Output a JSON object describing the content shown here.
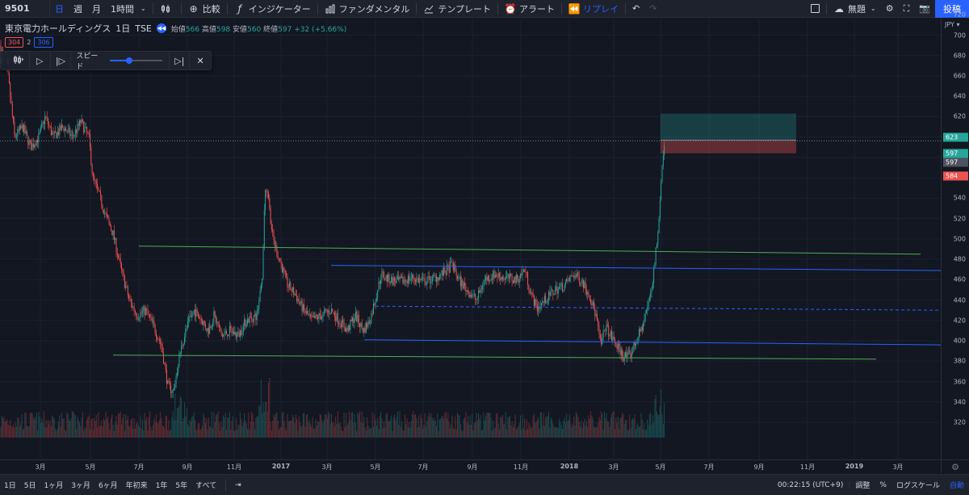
{
  "toolbar": {
    "symbol": "9501",
    "intervals": [
      "日",
      "週",
      "月"
    ],
    "active_interval": "日",
    "hour_interval": "1時間",
    "compare": "比較",
    "indicators": "インジケーター",
    "fundamentals": "ファンダメンタル",
    "templates": "テンプレート",
    "alert": "アラート",
    "replay": "リプレイ",
    "layout_name": "無題",
    "post": "投稿"
  },
  "legend": {
    "name": "東京電力ホールディングス",
    "interval": "1日",
    "exchange": "TSE",
    "open_label": "始値",
    "open": "566",
    "high_label": "高値",
    "high": "598",
    "low_label": "安値",
    "low": "560",
    "close_label": "終値",
    "close": "597",
    "change": "+32 (+5.66%)",
    "badge_left": "304",
    "badge_mid": "2",
    "badge_right": "306"
  },
  "replay_panel": {
    "speed_label": "スピード",
    "speed_value": 0.36
  },
  "price_axis": {
    "currency": "JPY",
    "ticks": [
      "720",
      "700",
      "680",
      "660",
      "640",
      "620",
      "600",
      "580",
      "560",
      "540",
      "520",
      "500",
      "480",
      "460",
      "440",
      "420",
      "400",
      "380",
      "360",
      "340",
      "320"
    ],
    "tags": [
      {
        "label": "623",
        "color": "#26a69a",
        "price": 623
      },
      {
        "label": "597",
        "color": "#26a69a",
        "price": 598
      },
      {
        "label": "597",
        "color": "#4c525e",
        "price": 594
      },
      {
        "label": "584",
        "color": "#ef5350",
        "price": 584
      }
    ]
  },
  "time_axis": {
    "ticks": [
      "3月",
      "5月",
      "7月",
      "9月",
      "11月",
      "2017",
      "3月",
      "5月",
      "7月",
      "9月",
      "11月",
      "2018",
      "3月",
      "5月",
      "7月",
      "9月",
      "11月",
      "2019",
      "3月"
    ]
  },
  "chart_data": {
    "type": "candlestick",
    "title": "東京電力ホールディングス · 1日 · TSE",
    "ylim": [
      310,
      730
    ],
    "x_start": "2016-01",
    "x_end": "2019-04",
    "last_close": 597,
    "position": {
      "entry": 597,
      "target": 623,
      "stop": 584
    },
    "lines": [
      {
        "name": "upper-green",
        "color": "#4caf50",
        "from": 493,
        "to": 485
      },
      {
        "name": "upper-blue",
        "color": "#2962ff",
        "from": 474,
        "to": 469
      },
      {
        "name": "mid-blue-dashed",
        "color": "#2962ff",
        "from": 434,
        "to": 430
      },
      {
        "name": "lower-blue",
        "color": "#2962ff",
        "from": 401,
        "to": 396
      },
      {
        "name": "lower-green",
        "color": "#4caf50",
        "from": 386,
        "to": 382
      }
    ]
  },
  "bottom_bar": {
    "ranges": [
      "1日",
      "5日",
      "1ヶ月",
      "3ヶ月",
      "6ヶ月",
      "年初来",
      "1年",
      "5年",
      "すべて"
    ],
    "clock": "00:22:15 (UTC+9)",
    "adjust": "調整",
    "percent": "%",
    "log": "ログスケール",
    "auto": "自動"
  }
}
